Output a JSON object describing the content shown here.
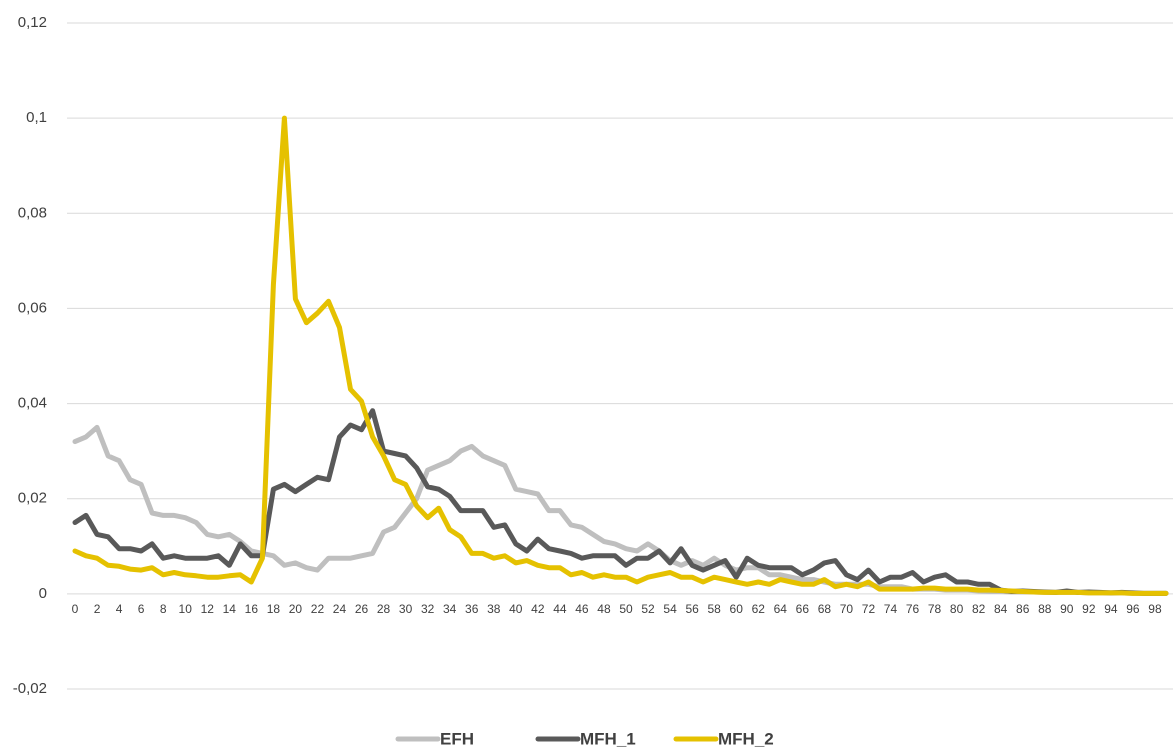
{
  "chart_data": {
    "type": "line",
    "categories": [
      0,
      null,
      2,
      null,
      4,
      null,
      6,
      null,
      8,
      null,
      10,
      null,
      12,
      null,
      14,
      null,
      16,
      null,
      18,
      null,
      20,
      null,
      22,
      null,
      24,
      null,
      26,
      null,
      28,
      null,
      30,
      null,
      32,
      null,
      34,
      null,
      36,
      null,
      38,
      null,
      40,
      null,
      42,
      null,
      44,
      null,
      46,
      null,
      48,
      null,
      50,
      null,
      52,
      null,
      54,
      null,
      56,
      null,
      58,
      null,
      60,
      null,
      62,
      null,
      64,
      null,
      66,
      null,
      68,
      null,
      70,
      null,
      72,
      null,
      74,
      null,
      76,
      null,
      78,
      null,
      80,
      null,
      82,
      null,
      84,
      null,
      86,
      null,
      88,
      null,
      90,
      null,
      92,
      null,
      94,
      null,
      96,
      null,
      98,
      null
    ],
    "series": [
      {
        "name": "EFH",
        "color": "#bfbfbf",
        "values": [
          0.032,
          0.033,
          0.035,
          0.029,
          0.028,
          0.024,
          0.023,
          0.017,
          0.0165,
          0.0165,
          0.016,
          0.015,
          0.0125,
          0.012,
          0.0125,
          0.011,
          0.009,
          0.0085,
          0.008,
          0.006,
          0.0065,
          0.0055,
          0.005,
          0.0075,
          0.0075,
          0.0075,
          0.008,
          0.0085,
          0.013,
          0.014,
          0.017,
          0.02,
          0.026,
          0.027,
          0.028,
          0.03,
          0.031,
          0.029,
          0.028,
          0.027,
          0.022,
          0.0215,
          0.021,
          0.0175,
          0.0175,
          0.0145,
          0.014,
          0.0125,
          0.011,
          0.0105,
          0.0095,
          0.009,
          0.0105,
          0.009,
          0.007,
          0.006,
          0.007,
          0.006,
          0.0075,
          0.006,
          0.005,
          0.0055,
          0.0055,
          0.004,
          0.004,
          0.0035,
          0.003,
          0.003,
          0.0025,
          0.002,
          0.002,
          0.002,
          0.002,
          0.0015,
          0.0015,
          0.0015,
          0.001,
          0.001,
          0.001,
          0.0008,
          0.0008,
          0.0008,
          0.0006,
          0.0005,
          0.0005,
          0.0004,
          0.0004,
          0.0004,
          0.0003,
          0.0003,
          0.0003,
          0.0003,
          0.0002,
          0.0002,
          0.0002,
          0.0002,
          0.0001,
          0.0001,
          0.0001,
          0.0001
        ]
      },
      {
        "name": "MFH_1",
        "color": "#595959",
        "values": [
          0.015,
          0.0165,
          0.0125,
          0.012,
          0.0095,
          0.0095,
          0.009,
          0.0105,
          0.0075,
          0.008,
          0.0075,
          0.0075,
          0.0075,
          0.008,
          0.006,
          0.0105,
          0.008,
          0.008,
          0.022,
          0.023,
          0.0215,
          0.023,
          0.0245,
          0.024,
          0.033,
          0.0355,
          0.0345,
          0.0385,
          0.03,
          0.0295,
          0.029,
          0.0265,
          0.0225,
          0.022,
          0.0205,
          0.0175,
          0.0175,
          0.0175,
          0.014,
          0.0145,
          0.0105,
          0.009,
          0.0115,
          0.0095,
          0.009,
          0.0085,
          0.0075,
          0.008,
          0.008,
          0.008,
          0.006,
          0.0075,
          0.0075,
          0.009,
          0.0065,
          0.0095,
          0.006,
          0.005,
          0.006,
          0.007,
          0.0035,
          0.0075,
          0.006,
          0.0055,
          0.0055,
          0.0055,
          0.004,
          0.005,
          0.0065,
          0.007,
          0.004,
          0.003,
          0.005,
          0.0025,
          0.0035,
          0.0035,
          0.0045,
          0.0025,
          0.0035,
          0.004,
          0.0025,
          0.0025,
          0.002,
          0.002,
          0.0008,
          0.0005,
          0.0006,
          0.0005,
          0.0004,
          0.0003,
          0.0006,
          0.0003,
          0.0004,
          0.0003,
          0.0002,
          0.0003,
          0.0002,
          0.0001,
          0.0001,
          0.0001
        ]
      },
      {
        "name": "MFH_2",
        "color": "#e5c100",
        "values": [
          0.009,
          0.008,
          0.0075,
          0.006,
          0.0058,
          0.0052,
          0.005,
          0.0055,
          0.004,
          0.0045,
          0.004,
          0.0038,
          0.0035,
          0.0035,
          0.0038,
          0.004,
          0.0025,
          0.0075,
          0.065,
          0.1,
          0.062,
          0.057,
          0.059,
          0.0615,
          0.056,
          0.043,
          0.0405,
          0.033,
          0.029,
          0.024,
          0.023,
          0.0185,
          0.016,
          0.018,
          0.0135,
          0.012,
          0.0085,
          0.0085,
          0.0075,
          0.008,
          0.0065,
          0.007,
          0.006,
          0.0055,
          0.0055,
          0.004,
          0.0045,
          0.0035,
          0.004,
          0.0035,
          0.0035,
          0.0025,
          0.0035,
          0.004,
          0.0045,
          0.0035,
          0.0035,
          0.0025,
          0.0035,
          0.003,
          0.0025,
          0.002,
          0.0025,
          0.002,
          0.003,
          0.0025,
          0.002,
          0.002,
          0.003,
          0.0015,
          0.002,
          0.0015,
          0.0025,
          0.001,
          0.001,
          0.001,
          0.001,
          0.0012,
          0.0012,
          0.001,
          0.001,
          0.001,
          0.0008,
          0.0008,
          0.0007,
          0.0006,
          0.0005,
          0.0004,
          0.0003,
          0.0003,
          0.0003,
          0.0003,
          0.0002,
          0.0002,
          0.0002,
          0.0002,
          0.0001,
          0.0001,
          0.0001,
          0.0001
        ]
      }
    ],
    "ylim": [
      -0.02,
      0.12
    ],
    "yticks": [
      {
        "value": -0.02,
        "label": "-0,02"
      },
      0,
      {
        "value": 0.02,
        "label": "0,02"
      },
      {
        "value": 0.04,
        "label": "0,04"
      },
      {
        "value": 0.06,
        "label": "0,06"
      },
      {
        "value": 0.08,
        "label": "0,08"
      },
      {
        "value": 0.1,
        "label": "0,1"
      },
      {
        "value": 0.12,
        "label": "0,12"
      }
    ],
    "grid": true,
    "legend": "bottom"
  }
}
